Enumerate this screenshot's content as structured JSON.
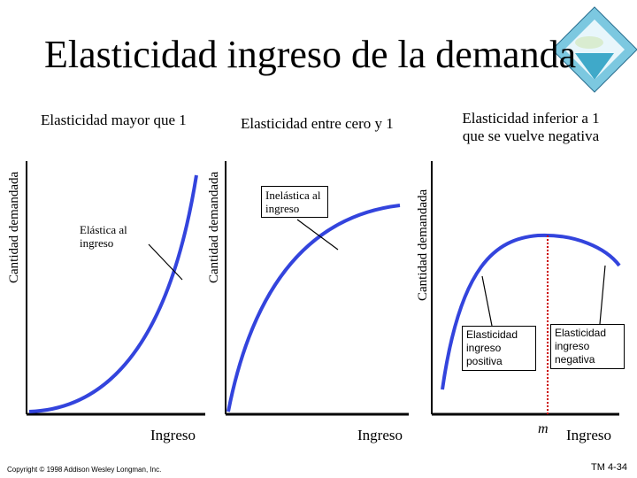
{
  "title": "Elasticidad ingreso de la demanda",
  "panels": [
    {
      "header": "Elasticidad mayor que 1",
      "y_axis_label": "Cantidad demandada",
      "x_axis_label": "Ingreso",
      "callout": "Elástica al ingreso"
    },
    {
      "header": "Elasticidad entre cero y 1",
      "y_axis_label": "Cantidad demandada",
      "x_axis_label": "Ingreso",
      "callout": "Inelástica al ingreso"
    },
    {
      "header_line1": "Elasticidad inferior a 1",
      "header_line2": "que se vuelve negativa",
      "y_axis_label": "Cantidad demandada",
      "x_axis_label": "Ingreso",
      "callout_left": "Elasticidad ingreso positiva",
      "callout_right": "Elasticidad ingreso negativa",
      "marker_label": "m"
    }
  ],
  "footer": {
    "copyright": "Copyright © 1998 Addison Wesley Longman, Inc.",
    "slide_number": "TM 4-34"
  },
  "colors": {
    "curve": "#3344dd",
    "axis": "#000000",
    "marker": "#cc0000",
    "logo_water": "#3fa9c9"
  }
}
